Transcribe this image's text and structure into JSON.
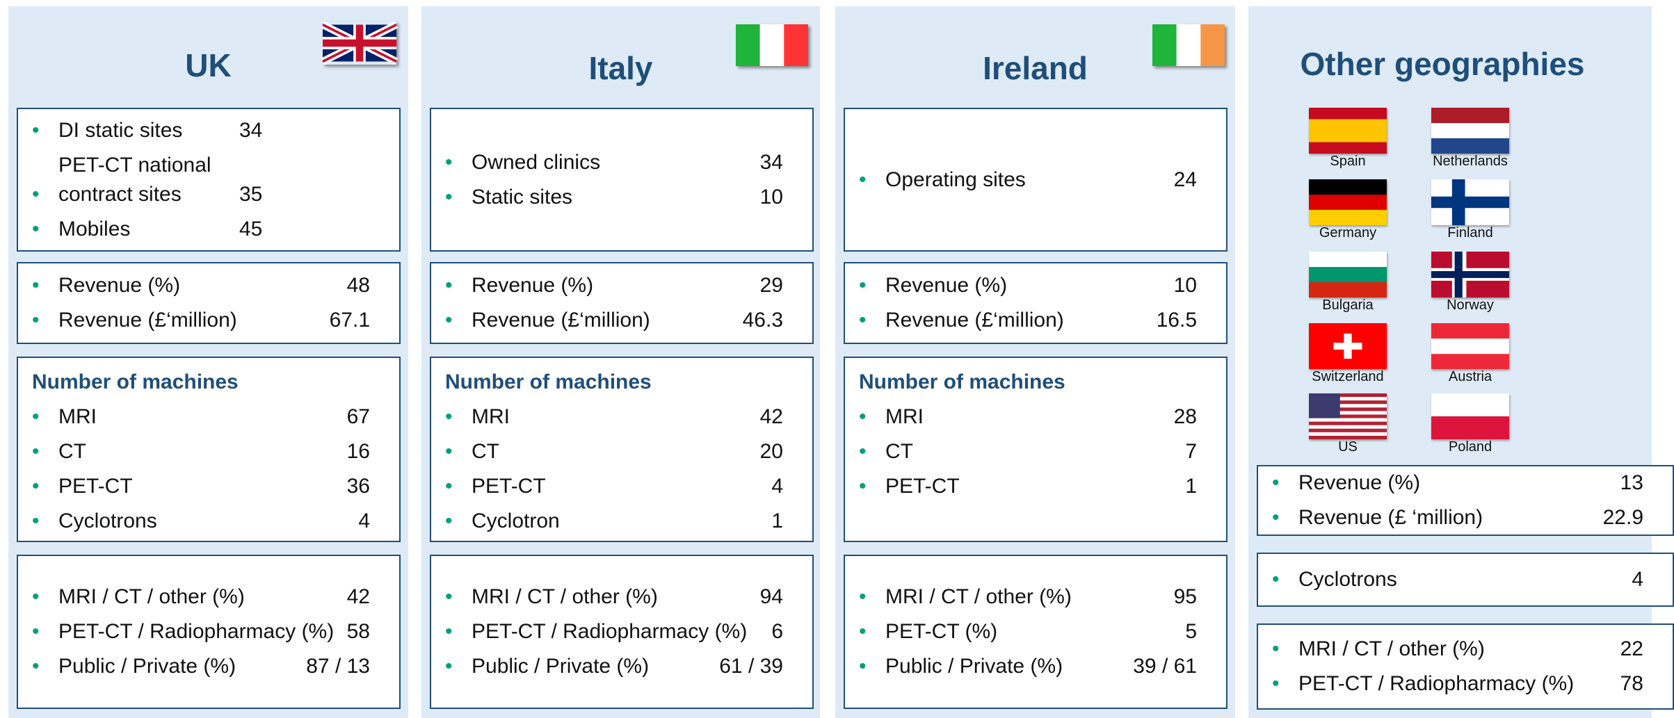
{
  "columns": [
    {
      "title": "UK",
      "boxes": [
        {
          "items": [
            {
              "label": "DI static sites",
              "value": "34"
            },
            {
              "label": "PET-CT national contract sites",
              "value": "35"
            },
            {
              "label": "Mobiles",
              "value": "45"
            }
          ]
        },
        {
          "items": [
            {
              "label": "Revenue  (%)",
              "value": "48"
            },
            {
              "label": "Revenue (£‘million)",
              "value": "67.1"
            }
          ]
        },
        {
          "heading": "Number of machines",
          "items": [
            {
              "label": "MRI",
              "value": "67"
            },
            {
              "label": "CT",
              "value": "16"
            },
            {
              "label": "PET-CT",
              "value": "36"
            },
            {
              "label": "Cyclotrons",
              "value": "4"
            }
          ]
        },
        {
          "items": [
            {
              "label": "MRI / CT / other (%)",
              "value": "42"
            },
            {
              "label": "PET-CT / Radiopharmacy (%)",
              "value": "58"
            },
            {
              "label": "Public / Private (%)",
              "value": "87 / 13"
            }
          ]
        }
      ]
    },
    {
      "title": "Italy",
      "boxes": [
        {
          "items": [
            {
              "label": "Owned clinics",
              "value": "34"
            },
            {
              "label": "Static sites",
              "value": "10"
            }
          ]
        },
        {
          "items": [
            {
              "label": "Revenue (%)",
              "value": "29"
            },
            {
              "label": "Revenue (£‘million)",
              "value": "46.3"
            }
          ]
        },
        {
          "heading": "Number of machines",
          "items": [
            {
              "label": "MRI",
              "value": "42"
            },
            {
              "label": "CT",
              "value": "20"
            },
            {
              "label": "PET-CT",
              "value": "4"
            },
            {
              "label": "Cyclotron",
              "value": "1"
            }
          ]
        },
        {
          "items": [
            {
              "label": "MRI / CT / other (%)",
              "value": "94"
            },
            {
              "label": "PET-CT / Radiopharmacy (%)",
              "value": "6"
            },
            {
              "label": "Public / Private (%)",
              "value": "61 / 39"
            }
          ]
        }
      ]
    },
    {
      "title": "Ireland",
      "boxes": [
        {
          "items": [
            {
              "label": "Operating sites",
              "value": "24"
            }
          ]
        },
        {
          "items": [
            {
              "label": "Revenue (%)",
              "value": "10"
            },
            {
              "label": "Revenue (£‘million)",
              "value": "16.5"
            }
          ]
        },
        {
          "heading": "Number of machines",
          "items": [
            {
              "label": "MRI",
              "value": "28"
            },
            {
              "label": "CT",
              "value": "7"
            },
            {
              "label": "PET-CT",
              "value": "1"
            }
          ]
        },
        {
          "items": [
            {
              "label": "MRI / CT / other  (%)",
              "value": "95"
            },
            {
              "label": "PET-CT (%)",
              "value": "5"
            },
            {
              "label": "Public / Private (%)",
              "value": "39 / 61"
            }
          ]
        }
      ]
    },
    {
      "title": "Other geographies",
      "flags": [
        "Spain",
        "Netherlands",
        "Germany",
        "Finland",
        "Bulgaria",
        "Norway",
        "Switzerland",
        "Austria",
        "US",
        "Poland"
      ],
      "boxes": [
        {
          "items": [
            {
              "label": "Revenue (%)",
              "value": "13"
            },
            {
              "label": "Revenue (£ ‘million)",
              "value": "22.9"
            }
          ]
        },
        {
          "items": [
            {
              "label": "Cyclotrons",
              "value": "4"
            }
          ]
        },
        {
          "items": [
            {
              "label": "MRI / CT / other (%)",
              "value": "22"
            },
            {
              "label": "PET-CT / Radiopharmacy (%)",
              "value": "78"
            }
          ]
        }
      ]
    }
  ]
}
